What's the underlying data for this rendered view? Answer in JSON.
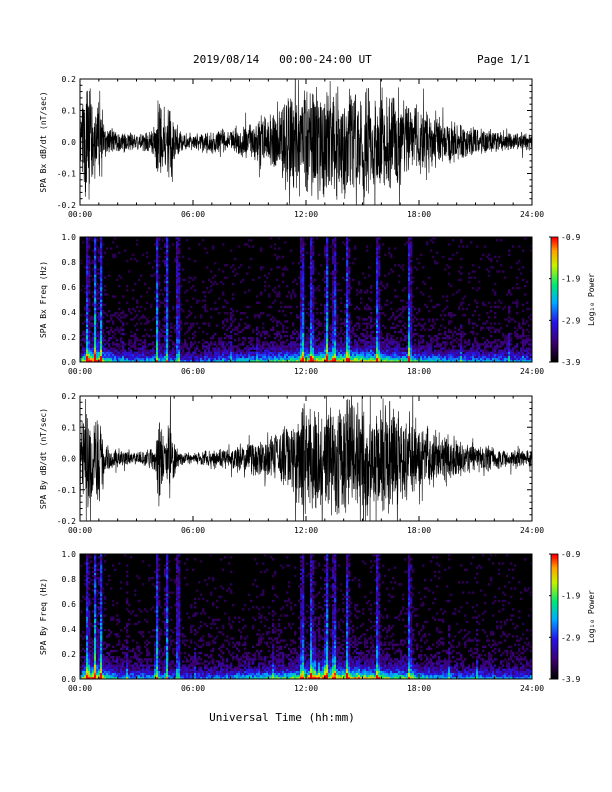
{
  "header": {
    "title": "2019/08/14   00:00-24:00 UT",
    "page": "Page 1/1"
  },
  "x_axis": {
    "label": "Universal Time (hh:mm)",
    "ticks": [
      "00:00",
      "06:00",
      "12:00",
      "18:00",
      "24:00"
    ]
  },
  "colorbar": {
    "label": "Log₁₀ Power",
    "ticks": [
      "-0.9",
      "-1.9",
      "-2.9",
      "-3.9"
    ]
  },
  "chart_data": [
    {
      "type": "line",
      "ylabel": "SPA Bx dB/dt (nT/sec)",
      "xlim": [
        0,
        24
      ],
      "ylim": [
        -0.2,
        0.2
      ],
      "yticks": [
        "-0.2",
        "-0.1",
        "0.0",
        "0.1",
        "0.2"
      ],
      "xticks": [
        "00:00",
        "06:00",
        "12:00",
        "18:00",
        "24:00"
      ],
      "envelope": {
        "hours": [
          0,
          0.3,
          0.5,
          0.8,
          1.0,
          1.3,
          1.6,
          2,
          3,
          4,
          4.2,
          4.5,
          4.8,
          5.1,
          5.5,
          6,
          7,
          8,
          9,
          10,
          10.5,
          11,
          11.3,
          11.5,
          12,
          13,
          14,
          15,
          16,
          17,
          18,
          19,
          20,
          21,
          22,
          23,
          24
        ],
        "amplitude": [
          0.1,
          0.2,
          0.2,
          0.12,
          0.2,
          0.06,
          0.05,
          0.04,
          0.03,
          0.05,
          0.2,
          0.06,
          0.2,
          0.05,
          0.03,
          0.03,
          0.04,
          0.05,
          0.07,
          0.09,
          0.12,
          0.15,
          0.2,
          0.2,
          0.2,
          0.2,
          0.2,
          0.2,
          0.19,
          0.15,
          0.12,
          0.09,
          0.07,
          0.05,
          0.04,
          0.03,
          0.03
        ]
      }
    },
    {
      "type": "heatmap",
      "ylabel": "SPA Bx Freq (Hz)",
      "xlim": [
        0,
        24
      ],
      "ylim": [
        0,
        1
      ],
      "yticks": [
        "0.0",
        "0.2",
        "0.4",
        "0.6",
        "0.8",
        "1.0"
      ],
      "xticks": [
        "00:00",
        "06:00",
        "12:00",
        "18:00",
        "24:00"
      ],
      "zlim": [
        -3.9,
        -0.9
      ],
      "zlabel": "Log₁₀ Power",
      "low_freq_band_hz": 0.05,
      "bright_columns_hours": [
        0.4,
        0.8,
        1.1,
        4.1,
        4.6,
        5.2,
        11.8,
        12.3,
        13.1,
        13.5,
        14.2,
        15.8,
        17.5
      ]
    },
    {
      "type": "line",
      "ylabel": "SPA By dB/dt (nT/sec)",
      "xlim": [
        0,
        24
      ],
      "ylim": [
        -0.2,
        0.2
      ],
      "yticks": [
        "-0.2",
        "-0.1",
        "0.0",
        "0.1",
        "0.2"
      ],
      "xticks": [
        "00:00",
        "06:00",
        "12:00",
        "18:00",
        "24:00"
      ],
      "envelope": {
        "hours": [
          0,
          0.3,
          0.5,
          0.8,
          1.0,
          1.3,
          1.6,
          2,
          3,
          4,
          4.2,
          4.5,
          4.8,
          5.1,
          5.5,
          6,
          7,
          8,
          9,
          10,
          10.5,
          11,
          11.5,
          11.8,
          12,
          13,
          14,
          15,
          16,
          17,
          18,
          19,
          20,
          21,
          22,
          23,
          24
        ],
        "amplitude": [
          0.08,
          0.2,
          0.2,
          0.12,
          0.2,
          0.05,
          0.04,
          0.03,
          0.02,
          0.04,
          0.2,
          0.04,
          0.2,
          0.04,
          0.02,
          0.02,
          0.03,
          0.04,
          0.06,
          0.08,
          0.1,
          0.12,
          0.15,
          0.2,
          0.2,
          0.2,
          0.2,
          0.2,
          0.2,
          0.17,
          0.12,
          0.09,
          0.07,
          0.05,
          0.04,
          0.03,
          0.03
        ]
      }
    },
    {
      "type": "heatmap",
      "ylabel": "SPA By Freq (Hz)",
      "xlim": [
        0,
        24
      ],
      "ylim": [
        0,
        1
      ],
      "yticks": [
        "0.0",
        "0.2",
        "0.4",
        "0.6",
        "0.8",
        "1.0"
      ],
      "xticks": [
        "00:00",
        "06:00",
        "12:00",
        "18:00",
        "24:00"
      ],
      "zlim": [
        -3.9,
        -0.9
      ],
      "zlabel": "Log₁₀ Power",
      "low_freq_band_hz": 0.05,
      "bright_columns_hours": [
        0.4,
        0.8,
        1.1,
        4.1,
        4.6,
        5.2,
        11.8,
        12.3,
        13.1,
        13.5,
        14.2,
        15.8,
        17.5
      ]
    }
  ]
}
